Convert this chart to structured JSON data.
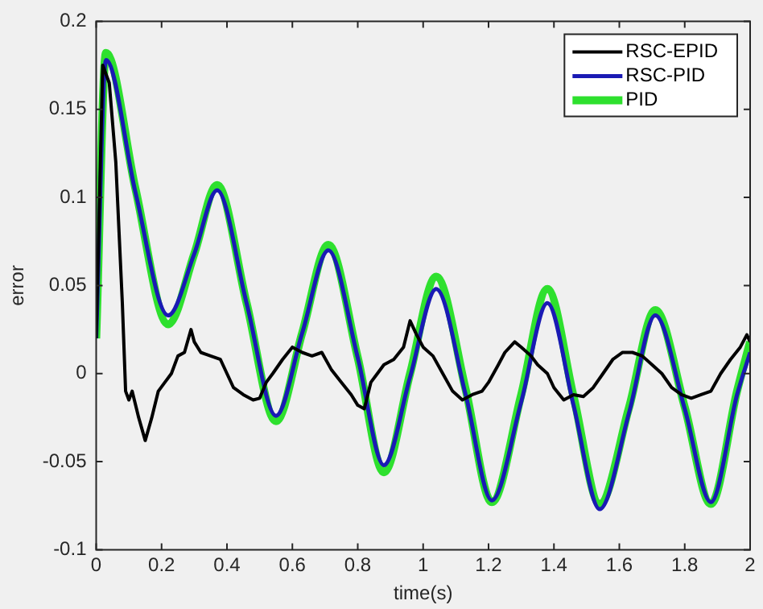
{
  "chart_data": {
    "type": "line",
    "xlabel": "time(s)",
    "ylabel": "error",
    "xlim": [
      0,
      2
    ],
    "xticks": [
      0,
      0.2,
      0.4,
      0.6,
      0.8,
      1,
      1.2,
      1.4,
      1.6,
      1.8,
      2
    ],
    "ylim": [
      -0.1,
      0.2
    ],
    "yticks": [
      -0.1,
      -0.05,
      0,
      0.05,
      0.1,
      0.15,
      0.2
    ],
    "grid": false,
    "legend": "top right",
    "marker": "none",
    "line_style": "solid",
    "series": [
      {
        "name": "RSC-EPID",
        "color": "#000000",
        "x": [
          0,
          0.02,
          0.04,
          0.06,
          0.08,
          0.09,
          0.1,
          0.11,
          0.13,
          0.15,
          0.17,
          0.19,
          0.21,
          0.23,
          0.25,
          0.27,
          0.29,
          0.3,
          0.32,
          0.35,
          0.38,
          0.4,
          0.42,
          0.45,
          0.48,
          0.5,
          0.52,
          0.54,
          0.57,
          0.6,
          0.63,
          0.66,
          0.69,
          0.72,
          0.75,
          0.78,
          0.8,
          0.82,
          0.84,
          0.86,
          0.88,
          0.91,
          0.94,
          0.96,
          0.98,
          1.0,
          1.03,
          1.06,
          1.09,
          1.12,
          1.15,
          1.18,
          1.2,
          1.23,
          1.25,
          1.28,
          1.3,
          1.33,
          1.35,
          1.38,
          1.4,
          1.43,
          1.46,
          1.49,
          1.52,
          1.55,
          1.58,
          1.61,
          1.64,
          1.67,
          1.7,
          1.73,
          1.76,
          1.79,
          1.82,
          1.85,
          1.88,
          1.91,
          1.94,
          1.97,
          1.99,
          2.0
        ],
        "values": [
          0.02,
          0.175,
          0.165,
          0.12,
          0.04,
          -0.01,
          -0.015,
          -0.01,
          -0.025,
          -0.038,
          -0.025,
          -0.01,
          -0.005,
          0.0,
          0.01,
          0.012,
          0.025,
          0.018,
          0.012,
          0.01,
          0.008,
          0.0,
          -0.008,
          -0.012,
          -0.015,
          -0.014,
          -0.005,
          0.0,
          0.008,
          0.015,
          0.012,
          0.01,
          0.012,
          0.002,
          -0.005,
          -0.012,
          -0.018,
          -0.02,
          -0.005,
          0.0,
          0.005,
          0.008,
          0.015,
          0.03,
          0.022,
          0.015,
          0.01,
          0.0,
          -0.01,
          -0.015,
          -0.012,
          -0.01,
          -0.005,
          0.005,
          0.012,
          0.018,
          0.015,
          0.01,
          0.005,
          0.0,
          -0.008,
          -0.015,
          -0.012,
          -0.013,
          -0.008,
          0.0,
          0.008,
          0.012,
          0.012,
          0.01,
          0.005,
          0.0,
          -0.008,
          -0.012,
          -0.014,
          -0.012,
          -0.01,
          0.0,
          0.008,
          0.015,
          0.022,
          0.018
        ]
      },
      {
        "name": "RSC-PID",
        "color": "#1a1ab4",
        "x": [
          0,
          0.03,
          0.12,
          0.22,
          0.3,
          0.37,
          0.46,
          0.55,
          0.63,
          0.71,
          0.8,
          0.88,
          0.96,
          1.04,
          1.13,
          1.21,
          1.3,
          1.38,
          1.46,
          1.54,
          1.63,
          1.71,
          1.8,
          1.88,
          1.96,
          2.0
        ],
        "values": [
          0.02,
          0.178,
          0.103,
          0.033,
          0.068,
          0.104,
          0.04,
          -0.024,
          0.023,
          0.07,
          0.009,
          -0.052,
          -0.002,
          0.048,
          -0.012,
          -0.072,
          -0.016,
          0.04,
          -0.018,
          -0.077,
          -0.022,
          0.033,
          -0.02,
          -0.073,
          -0.012,
          0.012
        ]
      },
      {
        "name": "PID",
        "color": "#2ee02e",
        "x": [
          0,
          0.03,
          0.12,
          0.22,
          0.3,
          0.37,
          0.46,
          0.55,
          0.63,
          0.71,
          0.8,
          0.88,
          0.96,
          1.04,
          1.13,
          1.21,
          1.3,
          1.38,
          1.46,
          1.54,
          1.63,
          1.71,
          1.8,
          1.88,
          1.96,
          2.0
        ],
        "values": [
          0.02,
          0.182,
          0.105,
          0.028,
          0.068,
          0.107,
          0.04,
          -0.027,
          0.023,
          0.073,
          0.009,
          -0.056,
          0.0,
          0.055,
          -0.009,
          -0.073,
          -0.012,
          0.048,
          -0.013,
          -0.074,
          -0.019,
          0.036,
          -0.019,
          -0.074,
          -0.01,
          0.018
        ]
      }
    ]
  }
}
